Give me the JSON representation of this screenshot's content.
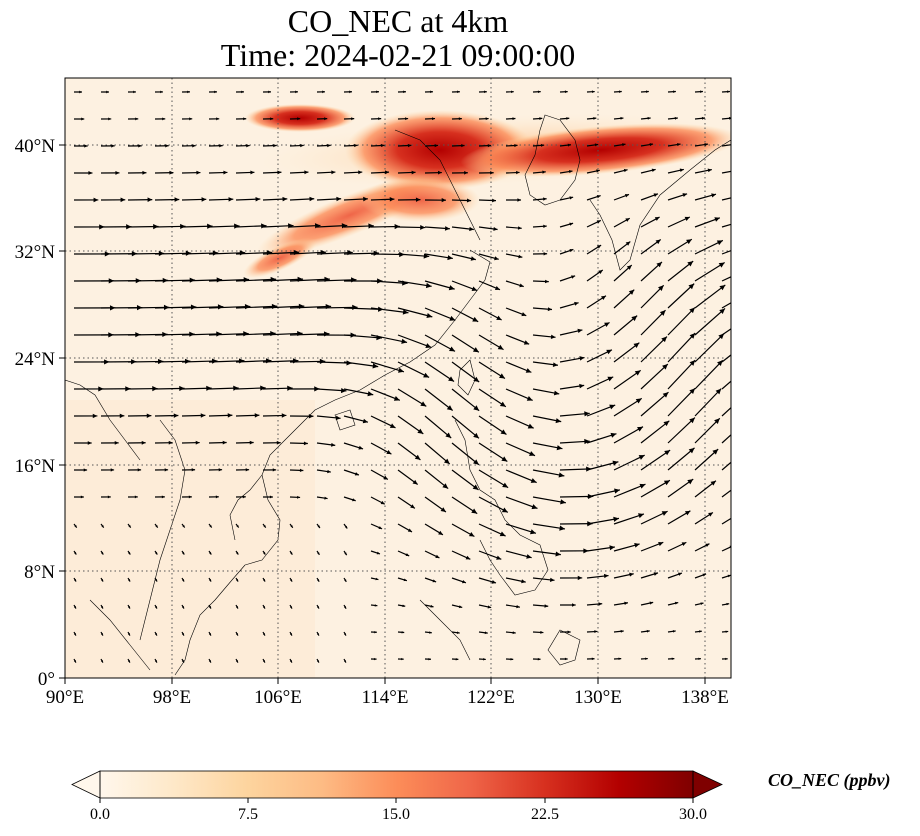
{
  "title": {
    "line1": "CO_NEC at 4km",
    "line2": "Time: 2024-02-21 09:00:00"
  },
  "map": {
    "extent": {
      "lon_min": 90,
      "lon_max": 140,
      "lat_min": 0,
      "lat_max": 45
    },
    "lon_ticks": [
      {
        "value": 90,
        "label": "90°E"
      },
      {
        "value": 98,
        "label": "98°E"
      },
      {
        "value": 106,
        "label": "106°E"
      },
      {
        "value": 114,
        "label": "114°E"
      },
      {
        "value": 122,
        "label": "122°E"
      },
      {
        "value": 130,
        "label": "130°E"
      },
      {
        "value": 138,
        "label": "138°E"
      }
    ],
    "lat_ticks": [
      {
        "value": 0,
        "label": "0°"
      },
      {
        "value": 8,
        "label": "8°N"
      },
      {
        "value": 16,
        "label": "16°N"
      },
      {
        "value": 24,
        "label": "24°N"
      },
      {
        "value": 32,
        "label": "32°N"
      },
      {
        "value": 40,
        "label": "40°N"
      }
    ],
    "gridlines": "dotted",
    "field_background": "#fdf1e1",
    "wind_vectors": "black arrows"
  },
  "colorbar": {
    "label": "CO_NEC (ppbv)",
    "min": 0.0,
    "max": 30.0,
    "extend": "both",
    "ticks": [
      "0.0",
      "7.5",
      "15.0",
      "22.5",
      "30.0"
    ],
    "colormap": "OrRd",
    "colors": [
      "#fff7ec",
      "#fee8c8",
      "#fdd49e",
      "#fdbb84",
      "#fc8d59",
      "#ef6548",
      "#d7301f",
      "#b30000",
      "#7f0000"
    ]
  }
}
